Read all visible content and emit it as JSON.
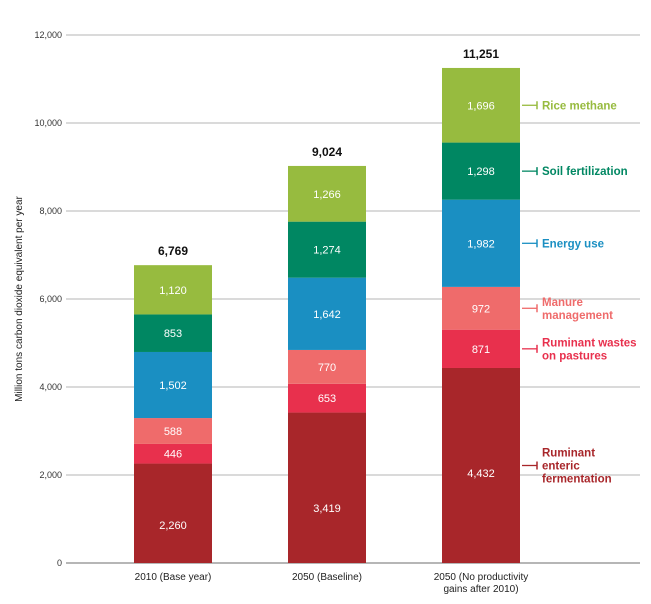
{
  "chart_data": {
    "type": "bar",
    "stacked": true,
    "title": "",
    "xlabel": "",
    "ylabel": "Million tons carbon dioxide equivalent per year",
    "ylim": [
      0,
      12000
    ],
    "yticks": [
      0,
      2000,
      4000,
      6000,
      8000,
      10000,
      12000
    ],
    "ytick_labels": [
      "0",
      "2,000",
      "4,000",
      "6,000",
      "8,000",
      "10,000",
      "12,000"
    ],
    "grid": true,
    "categories": [
      "2010 (Base year)",
      "2050 (Baseline)",
      "2050 (No productivity gains after 2010)"
    ],
    "category_lines": [
      [
        "2010 (Base year)"
      ],
      [
        "2050 (Baseline)"
      ],
      [
        "2050 (No productivity",
        "gains after 2010)"
      ]
    ],
    "totals": [
      6769,
      9024,
      11251
    ],
    "total_labels": [
      "6,769",
      "9,024",
      "11,251"
    ],
    "series": [
      {
        "name": "Ruminant enteric fermentation",
        "legend_lines": [
          "Ruminant",
          "enteric",
          "fermentation"
        ],
        "color": "#a8262a",
        "values": [
          2260,
          3419,
          4432
        ],
        "labels": [
          "2,260",
          "3,419",
          "4,432"
        ]
      },
      {
        "name": "Ruminant wastes on pastures",
        "legend_lines": [
          "Ruminant wastes",
          "on pastures"
        ],
        "color": "#e8304d",
        "values": [
          446,
          653,
          871
        ],
        "labels": [
          "446",
          "653",
          "871"
        ]
      },
      {
        "name": "Manure management",
        "legend_lines": [
          "Manure",
          "management"
        ],
        "color": "#ef6b6b",
        "values": [
          588,
          770,
          972
        ],
        "labels": [
          "588",
          "770",
          "972"
        ]
      },
      {
        "name": "Energy use",
        "legend_lines": [
          "Energy use"
        ],
        "color": "#1a8fc2",
        "values": [
          1502,
          1642,
          1982
        ],
        "labels": [
          "1,502",
          "1,642",
          "1,982"
        ]
      },
      {
        "name": "Soil fertilization",
        "legend_lines": [
          "Soil fertilization"
        ],
        "color": "#008762",
        "values": [
          853,
          1274,
          1298
        ],
        "labels": [
          "853",
          "1,274",
          "1,298"
        ]
      },
      {
        "name": "Rice methane",
        "legend_lines": [
          "Rice methane"
        ],
        "color": "#97bb3f",
        "values": [
          1120,
          1266,
          1696
        ],
        "labels": [
          "1,120",
          "1,266",
          "1,696"
        ]
      }
    ],
    "legend_placement": "right of last bar",
    "legend_text_colors": [
      "#a8262a",
      "#e8304d",
      "#ef6b6b",
      "#1a8fc2",
      "#008762",
      "#97bb3f"
    ]
  }
}
